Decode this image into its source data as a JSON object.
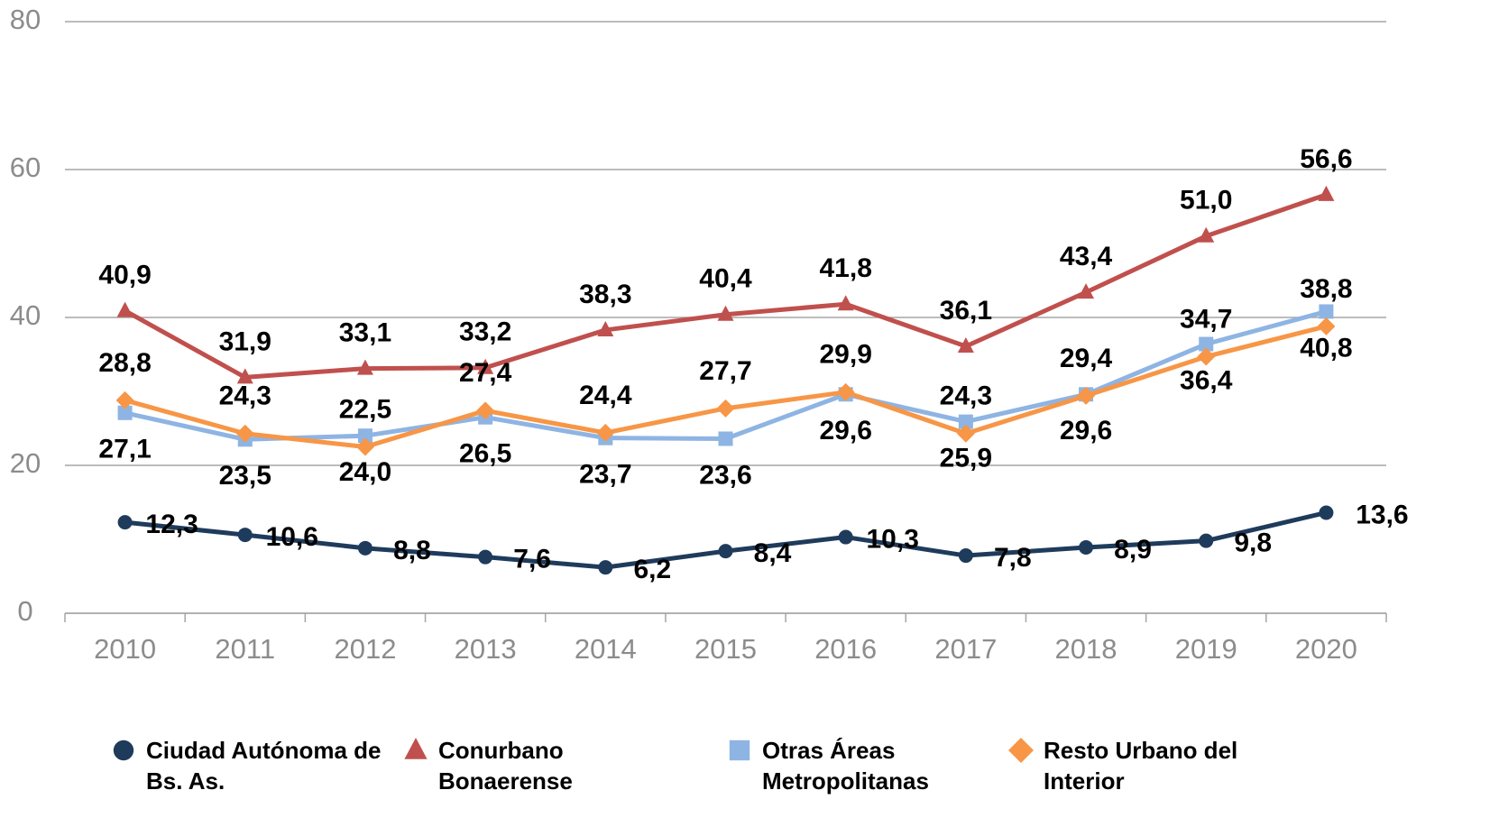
{
  "chart_data": {
    "type": "line",
    "categories": [
      "2010",
      "2011",
      "2012",
      "2013",
      "2014",
      "2015",
      "2016",
      "2017",
      "2018",
      "2019",
      "2020"
    ],
    "ylim": [
      0,
      80
    ],
    "yticks": [
      0,
      20,
      40,
      60,
      80
    ],
    "grid": true,
    "legend": "bottom",
    "series": [
      {
        "name": "Ciudad Autónoma de Bs. As.",
        "color": "#1f3b5c",
        "marker": "circle",
        "values": [
          12.3,
          10.6,
          8.8,
          7.6,
          6.2,
          8.4,
          10.3,
          7.8,
          8.9,
          9.8,
          13.6
        ],
        "value_labels": [
          "12,3",
          "10,6",
          "8,8",
          "7,6",
          "6,2",
          "8,4",
          "10,3",
          "7,8",
          "8,9",
          "9,8",
          "13,6"
        ]
      },
      {
        "name": "Conurbano Bonaerense",
        "color": "#c0504d",
        "marker": "triangle",
        "values": [
          40.9,
          31.9,
          33.1,
          33.2,
          38.3,
          40.4,
          41.8,
          36.1,
          43.4,
          51.0,
          56.6
        ],
        "value_labels": [
          "40,9",
          "31,9",
          "33,1",
          "33,2",
          "38,3",
          "40,4",
          "41,8",
          "36,1",
          "43,4",
          "51,0",
          "56,6"
        ]
      },
      {
        "name": "Otras Áreas Metropolitanas",
        "color": "#8eb4e3",
        "marker": "square",
        "values": [
          27.1,
          23.5,
          24.0,
          26.5,
          23.7,
          23.6,
          29.6,
          25.9,
          29.6,
          36.4,
          40.8
        ],
        "value_labels": [
          "27,1",
          "23,5",
          "24,0",
          "26,5",
          "23,7",
          "23,6",
          "29,6",
          "25,9",
          "29,6",
          "36,4",
          "40,8"
        ]
      },
      {
        "name": "Resto Urbano del Interior",
        "color": "#f79646",
        "marker": "diamond",
        "values": [
          28.8,
          24.3,
          22.5,
          27.4,
          24.4,
          27.7,
          29.9,
          24.3,
          29.4,
          34.7,
          38.8
        ],
        "value_labels": [
          "28,8",
          "24,3",
          "22,5",
          "27,4",
          "24,4",
          "27,7",
          "29,9",
          "24,3",
          "29,4",
          "34,7",
          "38,8"
        ]
      }
    ]
  }
}
